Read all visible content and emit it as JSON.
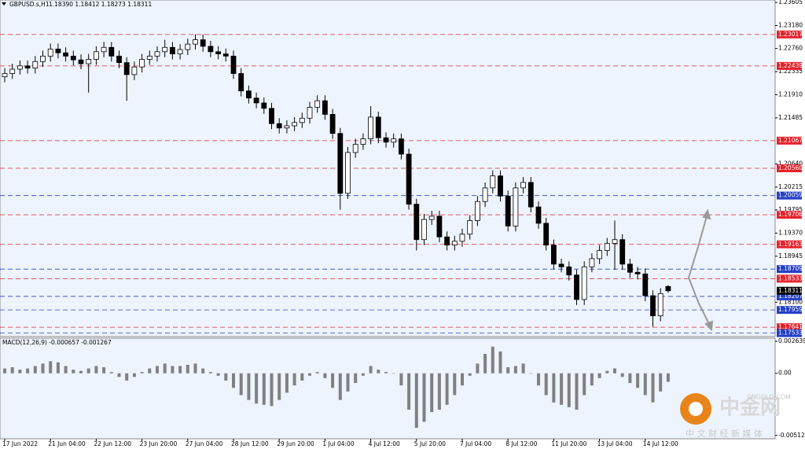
{
  "chart_data": {
    "type": "candlestick",
    "title": "GBPUSD.s,H1",
    "quote": "1.18390 1.18412 1.18273 1.18311",
    "categories": [
      "17 Jun 2022",
      null,
      null,
      null,
      null,
      null,
      "21 Jun 04:00",
      null,
      null,
      null,
      null,
      null,
      "22 Jun 12:00",
      null,
      null,
      null,
      null,
      null,
      "23 Jun 20:00",
      null,
      null,
      null,
      null,
      null,
      "27 Jun 04:00",
      null,
      null,
      null,
      null,
      null,
      "28 Jun 12:00",
      null,
      null,
      null,
      null,
      null,
      "29 Jun 20:00",
      null,
      null,
      null,
      null,
      null,
      "1 Jul 04:00",
      null,
      null,
      null,
      null,
      null,
      "4 Jul 12:00",
      null,
      null,
      null,
      null,
      null,
      "5 Jul 20:00",
      null,
      null,
      null,
      null,
      null,
      "7 Jul 04:00",
      null,
      null,
      null,
      null,
      null,
      "8 Jul 12:00",
      null,
      null,
      null,
      null,
      null,
      "11 Jul 20:00",
      null,
      null,
      null,
      null,
      null,
      "13 Jul 04:00",
      null,
      null,
      null,
      null,
      null,
      "14 Jul 12:00",
      null,
      null,
      null
    ],
    "open": [
      1.2224,
      1.223,
      1.2238,
      1.2244,
      1.224,
      1.2252,
      1.2262,
      1.2275,
      1.2268,
      1.2262,
      1.2255,
      1.2248,
      1.2256,
      1.227,
      1.2278,
      1.2262,
      1.225,
      1.2228,
      1.2242,
      1.2256,
      1.2262,
      1.227,
      1.2278,
      1.2266,
      1.2274,
      1.2284,
      1.2292,
      1.228,
      1.227,
      1.2266,
      1.2262,
      1.223,
      1.2198,
      1.2185,
      1.2176,
      1.2166,
      1.2138,
      1.213,
      1.2134,
      1.214,
      1.2148,
      1.2168,
      1.218,
      1.2155,
      1.212,
      1.201,
      1.2085,
      1.21,
      1.211,
      1.215,
      1.2112,
      1.2104,
      1.211,
      1.2082,
      1.199,
      1.1925,
      1.1962,
      1.1968,
      1.193,
      1.1915,
      1.1922,
      1.1935,
      1.196,
      1.1995,
      1.202,
      1.2042,
      1.2005,
      1.195,
      1.202,
      1.203,
      1.1985,
      1.1955,
      1.1915,
      1.188,
      1.1875,
      1.186,
      1.1815,
      1.1875,
      1.189,
      1.1905,
      1.1918,
      1.1925,
      1.188,
      1.1865,
      1.1862,
      1.1822,
      1.1785,
      1.1839
    ],
    "high": [
      1.224,
      1.2248,
      1.2254,
      1.2254,
      1.2262,
      1.2272,
      1.2285,
      1.2285,
      1.2278,
      1.2272,
      1.2265,
      1.2266,
      1.228,
      1.2288,
      1.2288,
      1.2272,
      1.226,
      1.2252,
      1.2266,
      1.2272,
      1.228,
      1.2292,
      1.2288,
      1.2284,
      1.2294,
      1.2302,
      1.2302,
      1.229,
      1.228,
      1.2276,
      1.2272,
      1.224,
      1.2208,
      1.2195,
      1.2186,
      1.2176,
      1.2148,
      1.2144,
      1.215,
      1.2158,
      1.2178,
      1.219,
      1.219,
      1.2165,
      1.213,
      1.2095,
      1.211,
      1.212,
      1.217,
      1.216,
      1.2122,
      1.212,
      1.212,
      1.2092,
      1.2,
      1.1972,
      1.1978,
      1.1978,
      1.194,
      1.1932,
      1.1945,
      1.197,
      1.2005,
      1.203,
      1.2052,
      1.2052,
      1.2015,
      1.203,
      1.204,
      1.204,
      1.1995,
      1.1965,
      1.1925,
      1.189,
      1.1885,
      1.187,
      1.1885,
      1.19,
      1.1915,
      1.1928,
      1.196,
      1.1935,
      1.189,
      1.1875,
      1.1872,
      1.1832,
      1.1836,
      1.18412
    ],
    "low": [
      1.2214,
      1.222,
      1.2228,
      1.223,
      1.223,
      1.2242,
      1.2252,
      1.2258,
      1.2252,
      1.2245,
      1.2238,
      1.2195,
      1.2246,
      1.226,
      1.2252,
      1.224,
      1.218,
      1.2218,
      1.2232,
      1.2246,
      1.2252,
      1.226,
      1.2256,
      1.2256,
      1.2264,
      1.2274,
      1.227,
      1.226,
      1.2256,
      1.2252,
      1.222,
      1.2188,
      1.2175,
      1.2166,
      1.2156,
      1.2128,
      1.212,
      1.212,
      1.2124,
      1.213,
      1.2138,
      1.2158,
      1.2145,
      1.211,
      1.198,
      1.2,
      1.2075,
      1.209,
      1.21,
      1.2102,
      1.2094,
      1.2094,
      1.2072,
      1.198,
      1.1905,
      1.1915,
      1.1952,
      1.192,
      1.1905,
      1.1905,
      1.1912,
      1.1925,
      1.195,
      1.1985,
      1.201,
      1.1995,
      1.194,
      1.194,
      1.201,
      1.1975,
      1.1945,
      1.1905,
      1.187,
      1.1865,
      1.185,
      1.1805,
      1.1805,
      1.1865,
      1.188,
      1.1895,
      1.187,
      1.187,
      1.1855,
      1.1852,
      1.1812,
      1.1765,
      1.1775,
      1.18273
    ],
    "close": [
      1.223,
      1.2238,
      1.2244,
      1.224,
      1.2252,
      1.2262,
      1.2275,
      1.2268,
      1.2262,
      1.2255,
      1.2248,
      1.2256,
      1.227,
      1.2278,
      1.2262,
      1.225,
      1.2228,
      1.2242,
      1.2256,
      1.2262,
      1.227,
      1.2278,
      1.2266,
      1.2274,
      1.2284,
      1.2292,
      1.228,
      1.227,
      1.2266,
      1.2262,
      1.223,
      1.2198,
      1.2185,
      1.2176,
      1.2166,
      1.2138,
      1.213,
      1.2134,
      1.214,
      1.2148,
      1.2168,
      1.218,
      1.2155,
      1.212,
      1.201,
      1.2085,
      1.21,
      1.211,
      1.215,
      1.2112,
      1.2104,
      1.211,
      1.2082,
      1.199,
      1.1925,
      1.1962,
      1.1968,
      1.193,
      1.1915,
      1.1922,
      1.1935,
      1.196,
      1.1995,
      1.202,
      1.2042,
      1.2005,
      1.195,
      1.202,
      1.203,
      1.1985,
      1.1955,
      1.1915,
      1.188,
      1.1875,
      1.186,
      1.1815,
      1.1875,
      1.189,
      1.1905,
      1.1918,
      1.1925,
      1.188,
      1.1865,
      1.1862,
      1.1822,
      1.1785,
      1.1826,
      1.18311
    ],
    "up_color": "#ffffff",
    "down_color": "#000000",
    "ylim": [
      1.1747,
      1.2365
    ],
    "yticks": [
      1.23605,
      {
        "value": 1.2318,
        "label": "1.23180"
      },
      {
        "value": 1.2276,
        "label": "1.22760"
      },
      1.22335,
      {
        "value": 1.2191,
        "label": "1.21910"
      },
      1.21485,
      {
        "value": 1.2064,
        "label": "1.20640"
      },
      1.20215,
      1.19795,
      {
        "value": 1.1937,
        "label": "1.19370"
      },
      1.18945,
      {
        "value": 1.181,
        "label": "1.18100"
      }
    ],
    "levels": [
      {
        "value": 1.23017,
        "color": "#e8222a"
      },
      {
        "value": 1.22439,
        "color": "#e8222a"
      },
      {
        "value": 1.21067,
        "color": "#e8222a"
      },
      {
        "value": 1.2056,
        "label": "1.20560",
        "color": "#e8222a"
      },
      {
        "value": 1.20059,
        "color": "#2440c8"
      },
      {
        "value": 1.19706,
        "color": "#e8222a"
      },
      {
        "value": 1.19163,
        "color": "#e8222a"
      },
      {
        "value": 1.18709,
        "color": "#2440c8"
      },
      {
        "value": 1.18533,
        "color": "#e8222a"
      },
      {
        "value": 1.18207,
        "color": "#2440c8"
      },
      {
        "value": 1.17959,
        "color": "#2440c8"
      },
      {
        "value": 1.17641,
        "color": "#e8222a"
      },
      {
        "value": 1.17533,
        "color": "#2440c8"
      }
    ],
    "last_price": 1.18311,
    "macd": {
      "label": "MACD(12,26,9) -0.000657 -0.001267",
      "color": "#808080",
      "values": [
        0.0004,
        0.0005,
        0.0003,
        0.0004,
        0.0006,
        0.0008,
        0.001,
        0.0009,
        0.0006,
        0.0003,
        0.0002,
        0.0004,
        0.0006,
        0.0005,
        0.0001,
        -0.0003,
        -0.0006,
        -0.0003,
        0.0001,
        0.0004,
        0.0006,
        0.0008,
        0.0006,
        0.0006,
        0.0007,
        0.0008,
        0.0004,
        0.0001,
        -0.0002,
        -0.0006,
        -0.0012,
        -0.0018,
        -0.0022,
        -0.0025,
        -0.0026,
        -0.0027,
        -0.0022,
        -0.0016,
        -0.001,
        -0.0006,
        -0.0002,
        0.0001,
        -0.0004,
        -0.0012,
        -0.0022,
        -0.0015,
        -0.0008,
        -0.0002,
        0.0006,
        0.0003,
        0.0001,
        0.0,
        -0.001,
        -0.003,
        -0.0045,
        -0.004,
        -0.0032,
        -0.003,
        -0.0026,
        -0.0018,
        -0.001,
        -0.0002,
        0.0008,
        0.0016,
        0.0022,
        0.0018,
        0.0005,
        0.0006,
        0.0008,
        0.0,
        -0.001,
        -0.0018,
        -0.0024,
        -0.0026,
        -0.0028,
        -0.003,
        -0.0018,
        -0.001,
        -0.0004,
        0.0002,
        0.0004,
        -0.0003,
        -0.0008,
        -0.0012,
        -0.0018,
        -0.0024,
        -0.0015,
        -0.0007
      ],
      "ylim": [
        -0.0054,
        0.0029
      ],
      "yticks": [
        0.002639,
        {
          "value": 0,
          "label": "0.00"
        },
        -0.005125
      ]
    },
    "watermark": {
      "brand": "中金网",
      "site": "CNGOLD.COM",
      "slogan": "中 文 财 经 新 媒 体"
    }
  }
}
